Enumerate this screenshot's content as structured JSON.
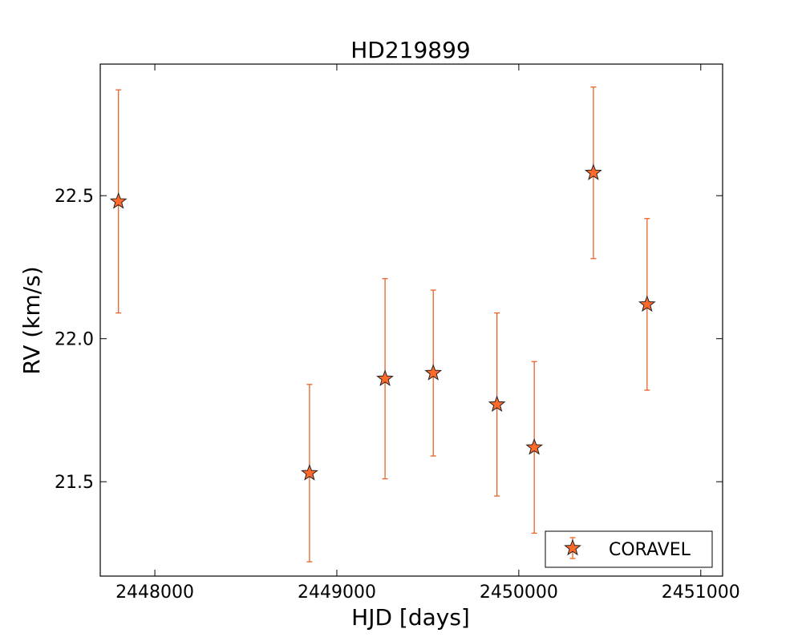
{
  "chart_data": {
    "type": "scatter",
    "title": "HD219899",
    "xlabel": "HJD [days]",
    "ylabel": "RV (km/s)",
    "xlim": [
      2447700,
      2451120
    ],
    "ylim": [
      21.17,
      22.96
    ],
    "xticks": [
      2448000,
      2449000,
      2450000,
      2451000
    ],
    "xtick_labels": [
      "2448000",
      "2449000",
      "2450000",
      "2451000"
    ],
    "yticks": [
      21.5,
      22.0,
      22.5
    ],
    "ytick_labels": [
      "21.5",
      "22.0",
      "22.5"
    ],
    "grid": false,
    "legend_position": "bottom-right",
    "series": [
      {
        "name": "CORAVEL",
        "color": "#ff6a2b",
        "errorbar_color": "#e8632a",
        "marker": "star",
        "points": [
          {
            "x": 2447800,
            "y": 22.48,
            "err": 0.39
          },
          {
            "x": 2448850,
            "y": 21.53,
            "err": 0.31
          },
          {
            "x": 2449265,
            "y": 21.86,
            "err": 0.35
          },
          {
            "x": 2449530,
            "y": 21.88,
            "err": 0.29
          },
          {
            "x": 2449880,
            "y": 21.77,
            "err": 0.32
          },
          {
            "x": 2450085,
            "y": 21.62,
            "err": 0.3
          },
          {
            "x": 2450410,
            "y": 22.58,
            "err": 0.3
          },
          {
            "x": 2450705,
            "y": 22.12,
            "err": 0.3
          }
        ]
      }
    ]
  }
}
